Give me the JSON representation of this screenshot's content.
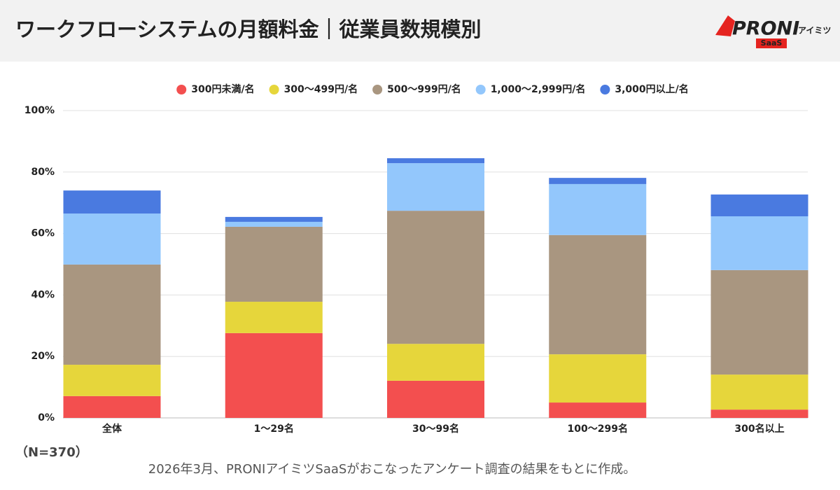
{
  "header": {
    "title": "ワークフローシステムの月額料金｜従業員数規模別",
    "logo": {
      "brand": "PRONI",
      "sub": "アイミツ",
      "badge": "SaaS"
    }
  },
  "chart_data": {
    "type": "stacked-bar",
    "categories": [
      "全体",
      "1〜29名",
      "30〜99名",
      "100〜299名",
      "300名以上"
    ],
    "series": [
      {
        "name": "300円未満/名",
        "color": "#f34f4f",
        "values": [
          7.1,
          27.6,
          12.1,
          5.0,
          2.7
        ]
      },
      {
        "name": "300〜499円/名",
        "color": "#e6d63b",
        "values": [
          10.2,
          10.2,
          12.0,
          15.7,
          11.4
        ]
      },
      {
        "name": "500〜999円/名",
        "color": "#a99680",
        "values": [
          32.6,
          24.4,
          43.3,
          38.8,
          34.0
        ]
      },
      {
        "name": "1,000〜2,999円/名",
        "color": "#93c7fc",
        "values": [
          16.6,
          1.6,
          15.5,
          16.6,
          17.5
        ]
      },
      {
        "name": "3,000円以上/名",
        "color": "#4a7ae0",
        "values": [
          7.5,
          1.6,
          1.6,
          2.0,
          7.1
        ]
      }
    ],
    "ylim": [
      0,
      100
    ],
    "yticks": [
      {
        "value": 0,
        "label": "0%"
      },
      {
        "value": 20,
        "label": "20%"
      },
      {
        "value": 40,
        "label": "40%"
      },
      {
        "value": 60,
        "label": "60%"
      },
      {
        "value": 80,
        "label": "80%"
      },
      {
        "value": 100,
        "label": "100%"
      }
    ],
    "grid": true,
    "legend": "top"
  },
  "notes": {
    "sample": "（N=370）",
    "source": "2026年3月、PRONIアイミツSaaSがおこなったアンケート調査の結果をもとに作成。"
  }
}
